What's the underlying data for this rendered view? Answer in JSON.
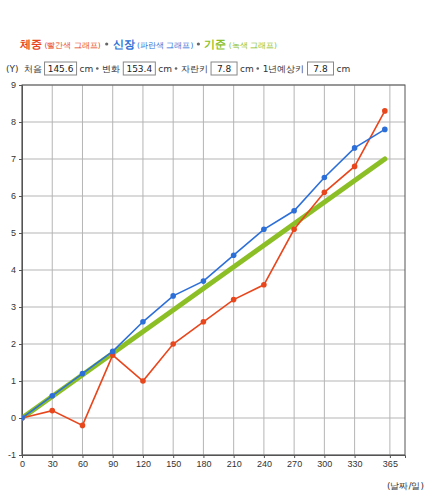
{
  "chart_data": {
    "type": "line",
    "x_label": "(날짜/일)",
    "y_label": "(Y)",
    "annotations": [
      {
        "label": "처음",
        "value": 145.6,
        "unit": "cm"
      },
      {
        "label": "변화",
        "value": 153.4,
        "unit": "cm"
      },
      {
        "label": "자란키",
        "value": 7.8,
        "unit": "cm"
      },
      {
        "label": "1년예상키",
        "value": 7.8,
        "unit": "cm"
      }
    ],
    "x": [
      0,
      30,
      60,
      90,
      120,
      150,
      180,
      210,
      240,
      270,
      300,
      330,
      360
    ],
    "series": [
      {
        "name": "체중 (빨간색 그래프)",
        "color": "#e8461c",
        "marker": "circle",
        "line_style": "solid",
        "values": [
          0,
          0.2,
          -0.2,
          1.7,
          1.0,
          2.0,
          2.6,
          3.2,
          3.6,
          5.1,
          6.1,
          6.8,
          8.3
        ]
      },
      {
        "name": "신장 (파란색 그래프)",
        "color": "#2d6fd8",
        "marker": "circle",
        "line_style": "solid",
        "values": [
          0,
          0.6,
          1.2,
          1.8,
          2.6,
          3.3,
          3.7,
          4.4,
          5.1,
          5.6,
          6.5,
          7.3,
          7.8
        ]
      },
      {
        "name": "기준 (녹색 그래프)",
        "color": "#8cbf26",
        "marker": "none",
        "line_style": "solid",
        "x": [
          0,
          360
        ],
        "values": [
          0,
          7.0
        ]
      }
    ],
    "xlim": [
      0,
      380
    ],
    "xticks": [
      0,
      30,
      60,
      90,
      120,
      150,
      180,
      210,
      240,
      270,
      300,
      330,
      365
    ],
    "ylim": [
      -1,
      9
    ],
    "yticks": [
      -1,
      0,
      1,
      2,
      3,
      4,
      5,
      6,
      7,
      8,
      9
    ],
    "grid": true,
    "legend": "top"
  }
}
